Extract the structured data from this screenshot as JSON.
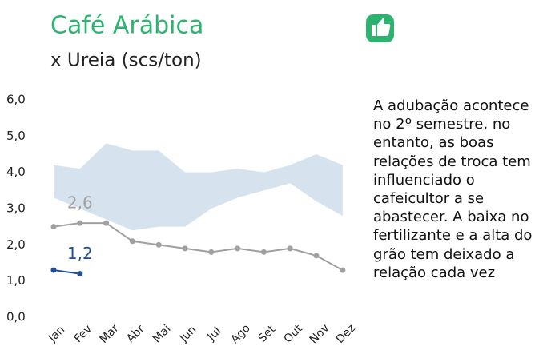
{
  "chart_data": {
    "type": "line",
    "title": "Café Arábica",
    "subtitle": "x Ureia (scs/ton)",
    "note": "A adubação acontece no 2º semestre, no entanto, as boas relações de troca tem influenciado o cafeicultor a se abastecer. A baixa no fertilizante e a alta do grão tem deixado a relação cada vez",
    "categories": [
      "Jan",
      "Fev",
      "Mar",
      "Abr",
      "Mai",
      "Jun",
      "Jul",
      "Ago",
      "Set",
      "Out",
      "Nov",
      "Dez"
    ],
    "band": {
      "color": "#d6e2ee",
      "high": [
        4.2,
        4.1,
        4.8,
        4.6,
        4.6,
        4.0,
        4.0,
        4.1,
        4.0,
        4.2,
        4.5,
        4.2
      ],
      "low": [
        3.3,
        3.0,
        2.7,
        2.4,
        2.5,
        2.5,
        3.0,
        3.3,
        3.5,
        3.7,
        3.2,
        2.8
      ]
    },
    "series": [
      {
        "color": "#a0a0a0",
        "values": [
          2.5,
          2.6,
          2.6,
          2.1,
          2.0,
          1.9,
          1.8,
          1.9,
          1.8,
          1.9,
          1.7,
          1.3
        ],
        "value_labels": [
          null,
          "2,6",
          null,
          null,
          null,
          null,
          null,
          null,
          null,
          null,
          null,
          null
        ]
      },
      {
        "color": "#1f4e96",
        "values": [
          1.3,
          1.2,
          null,
          null,
          null,
          null,
          null,
          null,
          null,
          null,
          null,
          null
        ],
        "value_labels": [
          null,
          "1,2",
          null,
          null,
          null,
          null,
          null,
          null,
          null,
          null,
          null,
          null
        ]
      }
    ],
    "ylim": [
      0,
      6
    ],
    "yticks": [
      {
        "value": 0,
        "label": "0,0"
      },
      {
        "value": 1,
        "label": "1,0"
      },
      {
        "value": 2,
        "label": "2,0"
      },
      {
        "value": 3,
        "label": "3,0"
      },
      {
        "value": 4,
        "label": "4,0"
      },
      {
        "value": 5,
        "label": "5,0"
      },
      {
        "value": 6,
        "label": "6,0"
      }
    ]
  }
}
